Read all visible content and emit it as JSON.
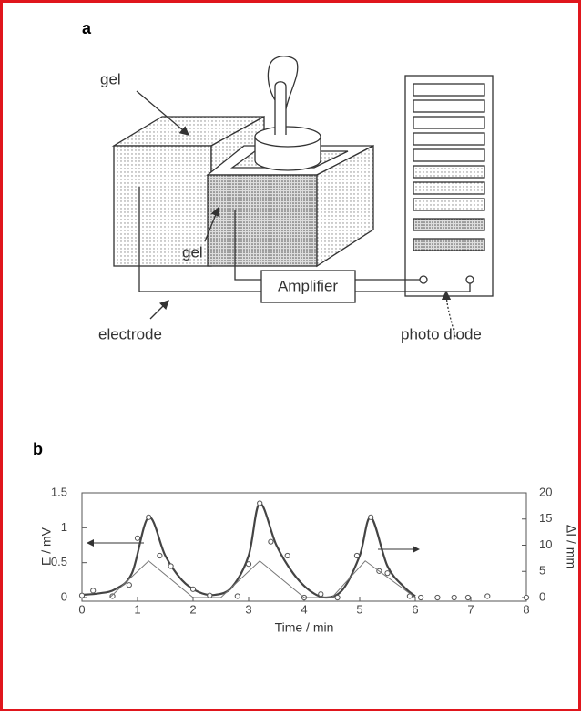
{
  "diagram": {
    "label": "a",
    "gel_top": "gel",
    "gel_front": "gel",
    "amplifier": "Amplifier",
    "electrode": "electrode",
    "photo_diode": "photo diode"
  },
  "chart_data": {
    "type": "line",
    "label": "b",
    "xlabel": "Time / min",
    "ylabel": "E / mV",
    "y2label": "ΔI / mm",
    "xlim": [
      0,
      8
    ],
    "xticks": [
      0,
      1,
      2,
      3,
      4,
      5,
      6,
      7,
      8
    ],
    "ylim": [
      0,
      1.5
    ],
    "yticks": [
      0,
      0.5,
      1,
      1.5
    ],
    "y2lim": [
      0,
      20
    ],
    "y2ticks": [
      0,
      5,
      10,
      15,
      20
    ],
    "grid": false,
    "series": [
      {
        "style": "smooth",
        "color": "#444",
        "x": [
          0,
          0.3,
          0.6,
          0.9,
          1.2,
          1.5,
          1.8,
          2.1,
          2.4,
          2.7,
          3.0,
          3.2,
          3.5,
          3.8,
          4.1,
          4.4,
          4.7,
          5.0,
          5.2,
          5.5,
          5.8,
          6.0
        ],
        "values": [
          0.04,
          0.06,
          0.12,
          0.35,
          1.15,
          0.6,
          0.25,
          0.08,
          0.04,
          0.15,
          0.6,
          1.35,
          0.75,
          0.35,
          0.1,
          0.0,
          0.12,
          0.6,
          1.15,
          0.45,
          0.15,
          0.02
        ]
      },
      {
        "style": "markers",
        "color": "#555",
        "x": [
          0,
          0.2,
          0.55,
          0.85,
          1.0,
          1.2,
          1.4,
          1.6,
          2.0,
          2.3,
          2.8,
          3.0,
          3.2,
          3.4,
          3.7,
          4.0,
          4.3,
          4.6,
          4.95,
          5.2,
          5.35,
          5.5,
          5.9,
          6.1,
          6.4,
          6.7,
          6.95,
          7.3,
          8
        ],
        "values": [
          0.03,
          0.1,
          0.02,
          0.18,
          0.85,
          1.15,
          0.6,
          0.45,
          0.12,
          0.03,
          0.02,
          0.48,
          1.35,
          0.8,
          0.6,
          0.0,
          0.05,
          0.0,
          0.6,
          1.15,
          0.38,
          0.35,
          0.02,
          0.0,
          0.0,
          0.0,
          0.0,
          0.02,
          0.0
        ]
      },
      {
        "style": "line",
        "color": "#777",
        "axis": "y2",
        "x": [
          0.5,
          1.2,
          2.0,
          2.5,
          3.2,
          4.0,
          4.5,
          5.1,
          6.0
        ],
        "values": [
          0,
          7,
          0,
          0,
          7,
          0,
          0,
          7,
          0
        ]
      }
    ]
  }
}
